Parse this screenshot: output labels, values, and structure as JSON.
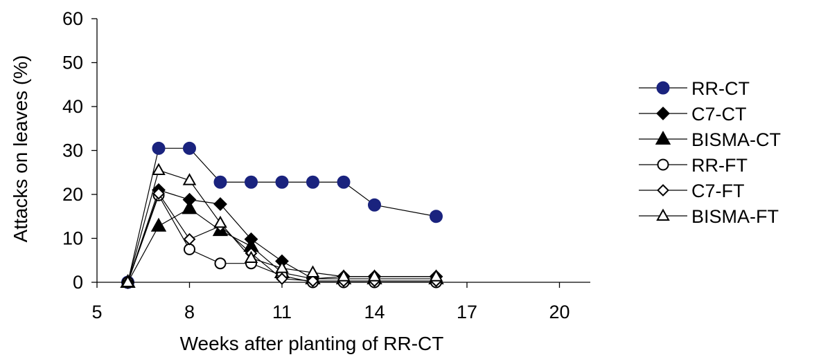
{
  "chart_data": {
    "type": "line",
    "title": "",
    "xlabel": "Weeks after planting of RR-CT",
    "ylabel": "Attacks on leaves (%)",
    "xlim": [
      5,
      21
    ],
    "ylim": [
      0,
      60
    ],
    "xticks": [
      5,
      8,
      11,
      14,
      17,
      20
    ],
    "yticks": [
      0,
      10,
      20,
      30,
      40,
      50,
      60
    ],
    "grid": false,
    "legend_position": "right",
    "series": [
      {
        "name": "RR-CT",
        "marker": "circle-filled",
        "color": "#1a237e",
        "points": [
          [
            6,
            0
          ],
          [
            7,
            30.5
          ],
          [
            8,
            30.5
          ],
          [
            9,
            22.8
          ],
          [
            10,
            22.8
          ],
          [
            11,
            22.8
          ],
          [
            12,
            22.8
          ],
          [
            13,
            22.8
          ],
          [
            14,
            17.6
          ],
          [
            16,
            15
          ]
        ]
      },
      {
        "name": "C7-CT",
        "marker": "diamond-filled",
        "color": "#000000",
        "points": [
          [
            6,
            0
          ],
          [
            7,
            21
          ],
          [
            8,
            18.8
          ],
          [
            9,
            17.8
          ],
          [
            10,
            9.8
          ],
          [
            11,
            4.8
          ],
          [
            12,
            0.8
          ],
          [
            13,
            1.3
          ],
          [
            14,
            1.3
          ],
          [
            16,
            1.3
          ]
        ]
      },
      {
        "name": "BISMA-CT",
        "marker": "triangle-filled",
        "color": "#000000",
        "points": [
          [
            6,
            0
          ],
          [
            7,
            12.8
          ],
          [
            8,
            16.8
          ],
          [
            9,
            11.8
          ],
          [
            10,
            8.2
          ],
          [
            11,
            2.2
          ],
          [
            12,
            0.8
          ],
          [
            13,
            0.8
          ],
          [
            14,
            0.8
          ],
          [
            16,
            0.8
          ]
        ]
      },
      {
        "name": "RR-FT",
        "marker": "circle-open",
        "color": "#000000",
        "points": [
          [
            6,
            0
          ],
          [
            7,
            19.8
          ],
          [
            8,
            7.5
          ],
          [
            9,
            4.3
          ],
          [
            10,
            4.3
          ],
          [
            11,
            1.5
          ],
          [
            12,
            0
          ],
          [
            13,
            0
          ],
          [
            14,
            0
          ],
          [
            16,
            0
          ]
        ]
      },
      {
        "name": "C7-FT",
        "marker": "diamond-open",
        "color": "#000000",
        "points": [
          [
            6,
            0
          ],
          [
            7,
            20.2
          ],
          [
            8,
            9.8
          ],
          [
            9,
            12.8
          ],
          [
            10,
            6.6
          ],
          [
            11,
            0.8
          ],
          [
            12,
            0.3
          ],
          [
            13,
            0.3
          ],
          [
            14,
            0.3
          ],
          [
            16,
            0.3
          ]
        ]
      },
      {
        "name": "BISMA-FT",
        "marker": "triangle-open",
        "color": "#000000",
        "points": [
          [
            6,
            0
          ],
          [
            7,
            25.5
          ],
          [
            8,
            23.2
          ],
          [
            9,
            13.5
          ],
          [
            10,
            5.5
          ],
          [
            11,
            3.2
          ],
          [
            12,
            2.2
          ],
          [
            13,
            1.3
          ],
          [
            14,
            1.3
          ],
          [
            16,
            1.3
          ]
        ]
      }
    ]
  }
}
